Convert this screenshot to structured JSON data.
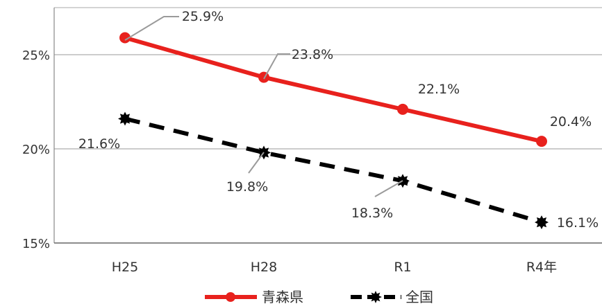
{
  "chart_data": {
    "type": "line",
    "categories": [
      "H25",
      "H28",
      "R1",
      "R4年"
    ],
    "ylim": [
      15,
      27.5
    ],
    "yticks": [
      {
        "value": 15,
        "label": "15%"
      },
      {
        "value": 20,
        "label": "20%"
      },
      {
        "value": 25,
        "label": "25%"
      }
    ],
    "grid": true,
    "legend_position": "bottom",
    "series": [
      {
        "name": "青森県",
        "values": [
          25.9,
          23.8,
          22.1,
          20.4
        ],
        "labels": [
          "25.9%",
          "23.8%",
          "22.1%",
          "20.4%"
        ],
        "color": "#e8211d",
        "style": "solid",
        "marker": "circle"
      },
      {
        "name": "全国",
        "values": [
          21.6,
          19.8,
          18.3,
          16.1
        ],
        "labels": [
          "21.6%",
          "19.8%",
          "18.3%",
          "16.1%"
        ],
        "color": "#000000",
        "style": "dashed",
        "marker": "star"
      }
    ]
  }
}
